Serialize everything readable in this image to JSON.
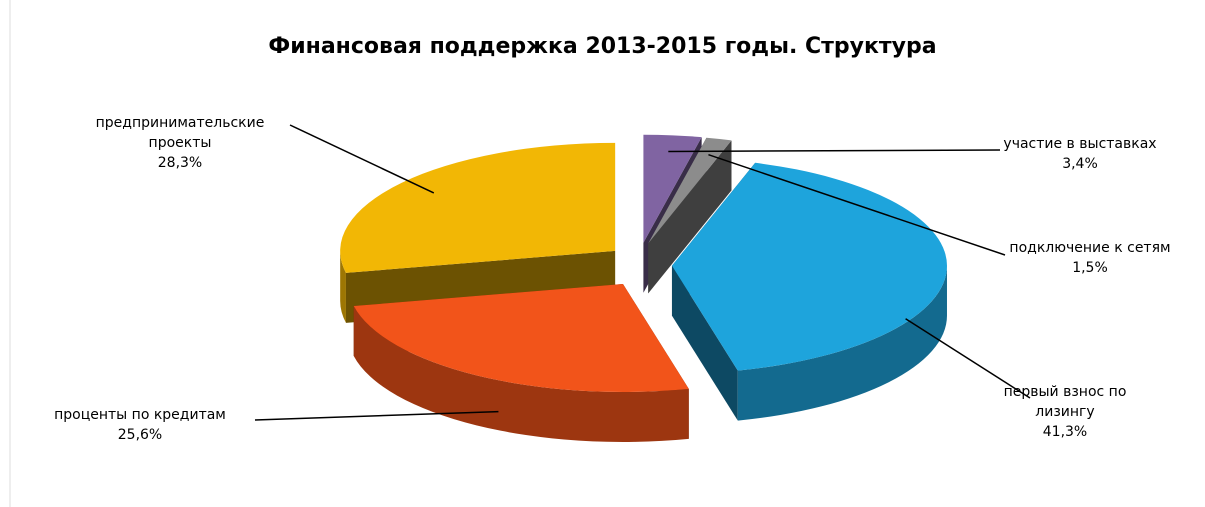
{
  "chart_data": {
    "type": "pie",
    "title": "Финансовая поддержка 2013-2015 годы. Структура",
    "categories": [
      "участие в выставках",
      "подключение к сетям",
      "первый взнос по лизингу",
      "проценты по кредитам",
      "предпринимательские проекты"
    ],
    "values": [
      3.4,
      1.5,
      41.3,
      25.6,
      28.3
    ],
    "value_labels": [
      "3,4%",
      "1,5%",
      "41,3%",
      "25,6%",
      "28,3%"
    ],
    "colors": [
      "#8064a2",
      "#8c8c8c",
      "#1ea4dc",
      "#f2541a",
      "#f2b705"
    ]
  }
}
